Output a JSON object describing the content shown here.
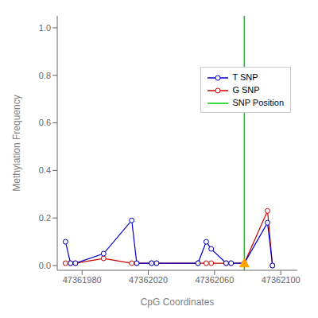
{
  "chart_data": {
    "type": "line",
    "xlabel": "CpG Coordinates",
    "ylabel": "Methylation Frequency",
    "x": [
      47361970,
      47361973,
      47361976,
      47361993,
      47362010,
      47362013,
      47362022,
      47362025,
      47362050,
      47362055,
      47362058,
      47362067,
      47362070,
      47362078,
      47362092,
      47362095
    ],
    "series": [
      {
        "name": "T SNP",
        "color": "#0000cc",
        "marker": "circle",
        "values": [
          0.1,
          0.01,
          0.01,
          0.05,
          0.19,
          0.01,
          0.01,
          0.01,
          0.01,
          0.1,
          0.07,
          0.01,
          0.01,
          0.01,
          0.18,
          0.0
        ]
      },
      {
        "name": "G SNP",
        "color": "#cc0000",
        "marker": "circle",
        "values": [
          0.01,
          0.01,
          0.01,
          0.03,
          0.01,
          0.01,
          0.01,
          0.01,
          0.01,
          0.01,
          0.01,
          0.01,
          0.01,
          0.01,
          0.23,
          0.0
        ]
      }
    ],
    "vline": {
      "name": "SNP Position",
      "x": 47362078,
      "color": "#00cc00"
    },
    "points": [
      {
        "x": 47362078,
        "y": 0.01,
        "color": "#FFA500",
        "marker": "triangle"
      }
    ],
    "xlim": [
      47361965,
      47362110
    ],
    "ylim": [
      -0.02,
      1.05
    ],
    "xticks": [
      47361980,
      47362020,
      47362060,
      47362100
    ],
    "yticks": [
      {
        "value": 0.0,
        "label": "0.0"
      },
      0.2,
      0.4,
      0.6,
      0.8,
      {
        "value": 1.0,
        "label": "1.0"
      }
    ],
    "grid": false,
    "legend": "upper right"
  }
}
